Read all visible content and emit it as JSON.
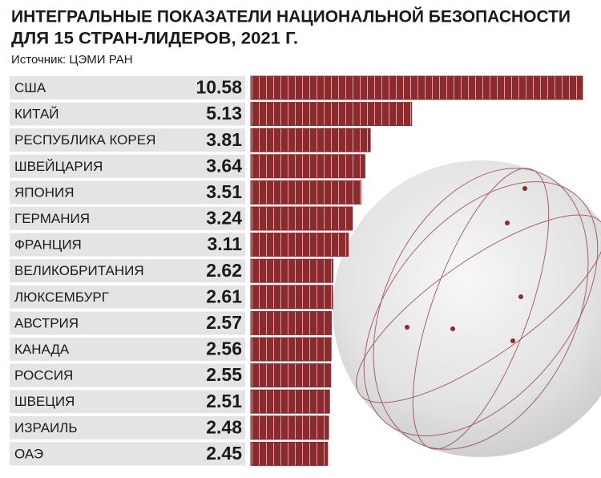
{
  "chart_data": {
    "type": "bar",
    "orientation": "horizontal",
    "title": [
      "ИНТЕГРАЛЬНЫЕ ПОКАЗАТЕЛИ НАЦИОНАЛЬНОЙ БЕЗОПАСНОСТИ",
      "ДЛЯ 15 СТРАН-ЛИДЕРОВ, 2021 Г."
    ],
    "source": "Источник: ЦЭМИ РАН",
    "categories": [
      "США",
      "КИТАЙ",
      "РЕСПУБЛИКА КОРЕЯ",
      "ШВЕЙЦАРИЯ",
      "ЯПОНИЯ",
      "ГЕРМАНИЯ",
      "ФРАНЦИЯ",
      "ВЕЛИКОБРИТАНИЯ",
      "ЛЮКСЕМБУРГ",
      "АВСТРИЯ",
      "КАНАДА",
      "РОССИЯ",
      "ШВЕЦИЯ",
      "ИЗРАИЛЬ",
      "ОАЭ"
    ],
    "values": [
      10.58,
      5.13,
      3.81,
      3.64,
      3.51,
      3.24,
      3.11,
      2.62,
      2.61,
      2.57,
      2.56,
      2.55,
      2.51,
      2.48,
      2.45
    ],
    "color": "#8b2b2e"
  }
}
